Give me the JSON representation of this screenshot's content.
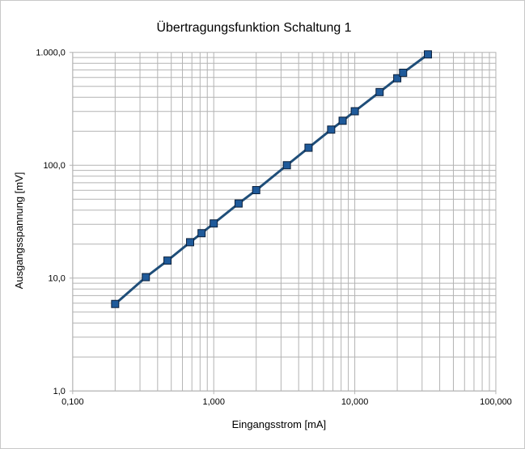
{
  "chart_data": {
    "type": "scatter",
    "title": "Übertragungsfunktion Schaltung 1",
    "xlabel": "Eingangsstrom [mA]",
    "ylabel": "Ausgangsspannung [mV]",
    "x_scale": "log",
    "y_scale": "log",
    "xlim": [
      0.1,
      100
    ],
    "ylim": [
      1,
      1000
    ],
    "grid": true,
    "legend": "none",
    "line_color": "#1f4e79",
    "marker_color": "#1f5a9a",
    "x_ticks": [
      {
        "value": 0.1,
        "label": "0,100"
      },
      {
        "value": 1,
        "label": "1,000"
      },
      {
        "value": 10,
        "label": "10,000"
      },
      {
        "value": 100,
        "label": "100,000"
      }
    ],
    "y_ticks": [
      {
        "value": 1,
        "label": "1,0"
      },
      {
        "value": 10,
        "label": "10,0"
      },
      {
        "value": 100,
        "label": "100,0"
      },
      {
        "value": 1000,
        "label": "1.000,0"
      }
    ],
    "series": [
      {
        "x": [
          0.2,
          0.33,
          0.47,
          0.68,
          0.82,
          1.0,
          1.5,
          2.0,
          3.3,
          4.7,
          6.8,
          8.2,
          10,
          15,
          20,
          22,
          33
        ],
        "y": [
          5.9,
          10.2,
          14.3,
          20.8,
          25.0,
          30.5,
          45.8,
          60.2,
          100.0,
          143.0,
          207.0,
          248.0,
          301.0,
          445.0,
          590.0,
          660.0,
          960.0
        ]
      }
    ]
  }
}
